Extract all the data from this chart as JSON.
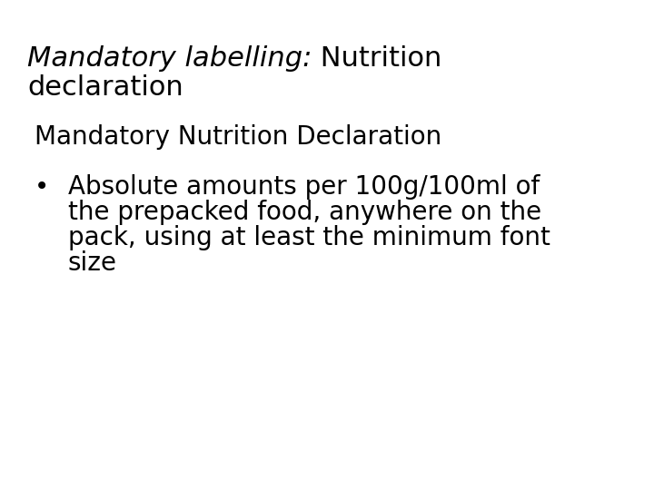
{
  "background_color": "#ffffff",
  "title_italic": "Mandatory labelling:",
  "title_normal": " Nutrition",
  "title_line2": "declaration",
  "subtitle": "Mandatory Nutrition Declaration",
  "bullet_lines": [
    "Absolute amounts per 100g/100ml of",
    "the prepacked food, anywhere on the",
    "pack, using at least the minimum font",
    "size"
  ],
  "bullet_char": "•",
  "title_fontsize": 22,
  "subtitle_fontsize": 20,
  "bullet_fontsize": 20,
  "text_color": "#000000",
  "font_family": "Comic Sans MS"
}
